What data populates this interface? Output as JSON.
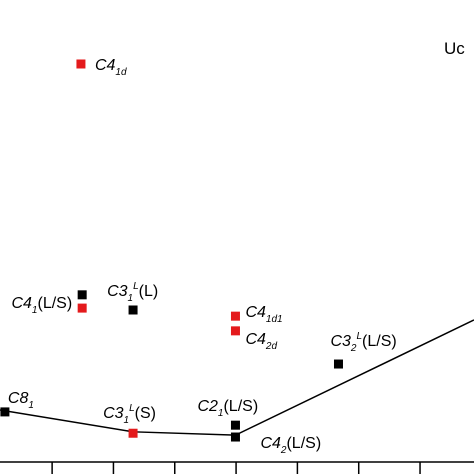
{
  "chart_data": {
    "type": "scatter",
    "xlim": [
      0.15,
      7.88
    ],
    "ylim": [
      0,
      10
    ],
    "xticks": [
      1,
      2,
      3,
      4,
      5,
      6,
      7
    ],
    "annotation": "Uc",
    "line": {
      "color": "#000000",
      "x": [
        0.15,
        2.32,
        3.99,
        7.88
      ],
      "y": [
        1.35,
        0.89,
        0.82,
        3.25
      ]
    },
    "series": [
      {
        "color": "#000000",
        "x": [
          1.49,
          2.32,
          5.67,
          0.23,
          3.99,
          3.99
        ],
        "y": [
          3.78,
          3.46,
          2.32,
          1.31,
          1.03,
          0.78
        ],
        "labels": [
          {
            "base": "C4",
            "sub": "1",
            "suffix": "(L/S)"
          },
          {
            "base": "C3",
            "sub": "1",
            "sup": "L",
            "suffix": "(L)"
          },
          {
            "base": "C3",
            "sub": "2",
            "sup": "L",
            "suffix": "(L/S)"
          },
          {
            "base": "C8",
            "sub": "1"
          },
          {
            "base": "C2",
            "sub": "1",
            "suffix": "(L/S)"
          },
          {
            "base": "C4",
            "sub": "2",
            "suffix": "(L/S)"
          }
        ]
      },
      {
        "color": "#e41a1c",
        "x": [
          1.47,
          1.49,
          3.99,
          3.99,
          2.32
        ],
        "y": [
          8.65,
          3.5,
          3.33,
          3.02,
          0.86
        ],
        "labels": [
          {
            "base": "C4",
            "sub": "1d"
          },
          null,
          {
            "base": "C4",
            "sub": "1d1"
          },
          {
            "base": "C4",
            "sub": "2d"
          },
          {
            "base": "C3",
            "sub": "1",
            "sup": "L",
            "suffix": "(S)"
          }
        ]
      }
    ]
  }
}
